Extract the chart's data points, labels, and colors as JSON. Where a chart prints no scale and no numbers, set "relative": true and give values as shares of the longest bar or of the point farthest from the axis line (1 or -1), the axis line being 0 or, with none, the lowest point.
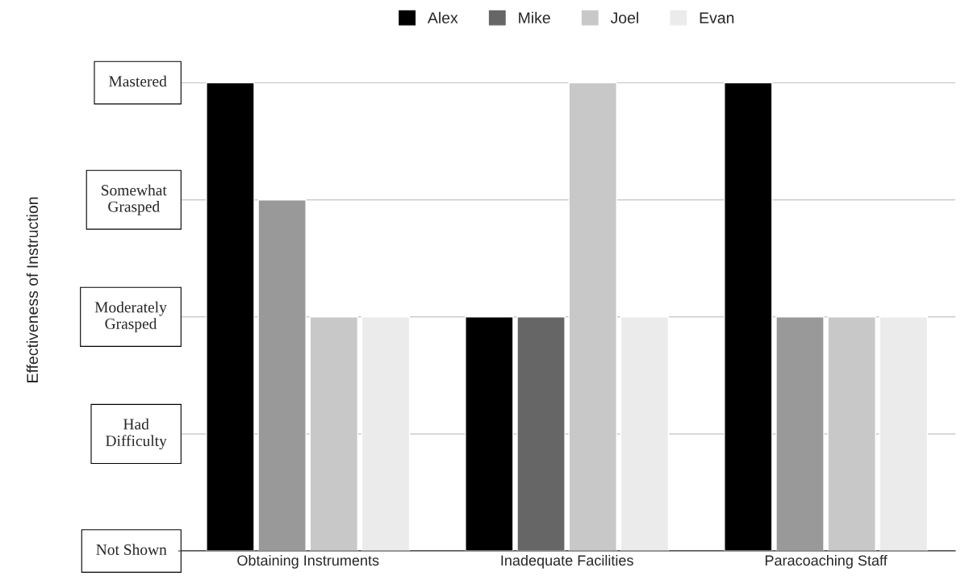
{
  "chart_data": {
    "type": "bar",
    "annotations": [
      "Effectiveness of Instruction"
    ],
    "categories": [
      "Obtaining Instruments",
      "Inadequate Facilities",
      "Paracoaching Staff"
    ],
    "relative": true,
    "series": [
      {
        "name": "Alex",
        "color": "#000000",
        "values": [
          1,
          0.5,
          1
        ]
      },
      {
        "name": "Mike",
        "color": "#666666",
        "colors": [
          "#999999",
          "#666666",
          "#999999"
        ],
        "values": [
          0.75,
          0.5,
          0.5
        ]
      },
      {
        "name": "Joel",
        "color": "#c8c8c8",
        "values": [
          0.5,
          1,
          0.5
        ]
      },
      {
        "name": "Evan",
        "color": "#ebebeb",
        "values": [
          0.5,
          0.5,
          0.5
        ]
      }
    ],
    "ref_lines": [
      {
        "axis": "y",
        "value": 0,
        "label": "Not Shown",
        "color": "#333333"
      },
      {
        "axis": "y",
        "value": 0.25,
        "label": "Had\nDifficulty",
        "color": "#cccccc"
      },
      {
        "axis": "y",
        "value": 0.5,
        "label": "Moderately\nGrasped",
        "color": "#cccccc"
      },
      {
        "axis": "y",
        "value": 0.75,
        "label": "Somewhat\nGrasped",
        "color": "#cccccc"
      },
      {
        "axis": "y",
        "value": 1,
        "label": "Mastered",
        "color": "#cccccc"
      }
    ],
    "legend": "top"
  }
}
